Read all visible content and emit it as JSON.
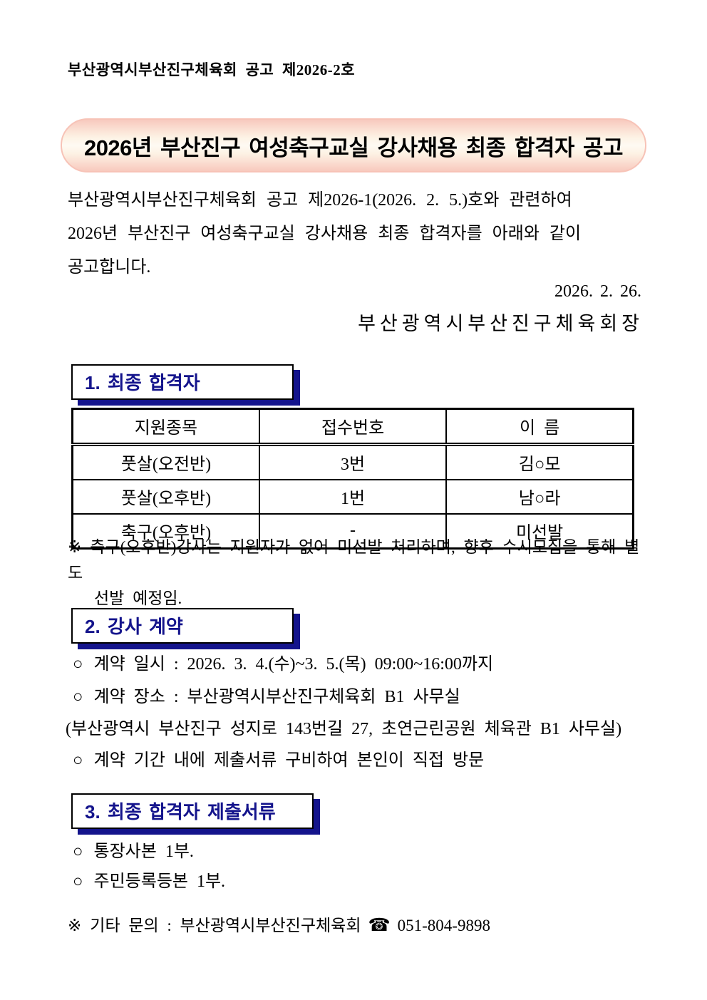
{
  "symbols": {
    "circle_bullet": "○",
    "reference_mark": "※",
    "phone_icon": "☎"
  },
  "colors": {
    "navy_accent": "#14148c",
    "banner_edge_pink": "#f8c9be",
    "banner_center_cream": "#fefaf3"
  },
  "header": {
    "doc_number": "부산광역시부산진구체육회 공고 제2026-2호"
  },
  "title": "2026년 부산진구 여성축구교실 강사채용 최종 합격자 공고",
  "intro": {
    "line1": "부산광역시부산진구체육회 공고 제2026-1(2026. 2. 5.)호와 관련하여",
    "line2": "2026년 부산진구 여성축구교실 강사채용 최종 합격자를 아래와 같이",
    "line3": "공고합니다."
  },
  "signoff": {
    "date": "2026. 2. 26.",
    "signer": "부산광역시부산진구체육회장"
  },
  "section1": {
    "heading": "1. 최종 합격자",
    "table": {
      "headers": [
        "지원종목",
        "접수번호",
        "이  름"
      ],
      "rows": [
        [
          "풋살(오전반)",
          "3번",
          "김○모"
        ],
        [
          "풋살(오후반)",
          "1번",
          "남○라"
        ],
        [
          "축구(오후반)",
          "-",
          "미선발"
        ]
      ]
    },
    "note_line1": "축구(오후반)강사는 지원자가 없어 미선발 처리하며, 향후 수시모집을 통해 별도",
    "note_line2": "선발 예정임."
  },
  "section2": {
    "heading": "2. 강사 계약",
    "item1": "계약 일시 : 2026. 3. 4.(수)~3. 5.(목) 09:00~16:00까지",
    "item2": "계약 장소 : 부산광역시부산진구체육회 B1 사무실",
    "address_note": "(부산광역시 부산진구 성지로 143번길 27, 초연근린공원 체육관 B1 사무실)",
    "item3": "계약 기간 내에 제출서류 구비하여 본인이 직접 방문"
  },
  "section3": {
    "heading": "3. 최종 합격자 제출서류",
    "item1": "통장사본 1부.",
    "item2": "주민등록등본 1부."
  },
  "footer": {
    "contact_text": "기타 문의 : 부산광역시부산진구체육회",
    "phone_number": "051-804-9898"
  }
}
